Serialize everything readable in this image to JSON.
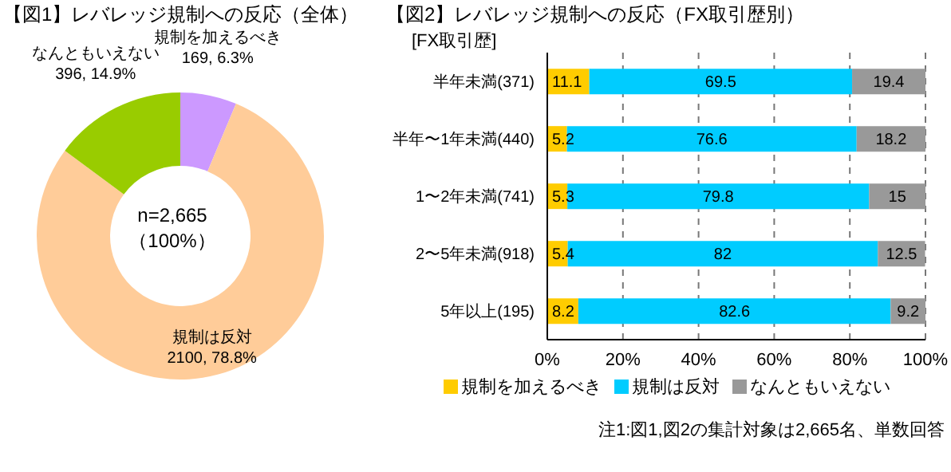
{
  "chart_data": [
    {
      "type": "donut",
      "title": "【図1】レバレッジ規制への反応（全体）",
      "categories": [
        "規制を加えるべき",
        "規制は反対",
        "なんともいえない"
      ],
      "values": [
        169,
        2100,
        396
      ],
      "value_labels": [
        "169, 6.3%",
        "2100, 78.8%",
        "396, 14.9%"
      ],
      "colors": [
        "#cc99ff",
        "#ffcc99",
        "#99cc00"
      ],
      "annotations": [
        "n=2,665",
        "（100%）"
      ]
    },
    {
      "type": "bar",
      "orientation": "horizontal",
      "stacked": true,
      "title": "【図2】レバレッジ規制への反応（FX取引歴別）",
      "ylabel": "[FX取引歴]",
      "categories": [
        "半年未満(371)",
        "半年〜1年未満(440)",
        "1〜2年未満(741)",
        "2〜5年未満(918)",
        "5年以上(195)"
      ],
      "series": [
        {
          "name": "規制を加えるべき",
          "color": "#ffcc00",
          "values": [
            11.1,
            5.2,
            5.3,
            5.4,
            8.2
          ]
        },
        {
          "name": "規制は反対",
          "color": "#00ccff",
          "values": [
            69.5,
            76.6,
            79.8,
            82,
            82.6
          ]
        },
        {
          "name": "なんともいえない",
          "color": "#999999",
          "values": [
            19.4,
            18.2,
            15,
            12.5,
            9.2
          ]
        }
      ],
      "xlim": [
        0,
        100
      ],
      "xticks": [
        {
          "value": 0,
          "label": "0%"
        },
        {
          "value": 20,
          "label": "20%"
        },
        {
          "value": 40,
          "label": "40%"
        },
        {
          "value": 60,
          "label": "60%"
        },
        {
          "value": 80,
          "label": "80%"
        },
        {
          "value": 100,
          "label": "100%"
        }
      ],
      "grid": "x",
      "data_labels": true,
      "legend": "bottom",
      "annotations": [
        "注1:図1,図2の集計対象は2,665名、単数回答"
      ]
    }
  ]
}
